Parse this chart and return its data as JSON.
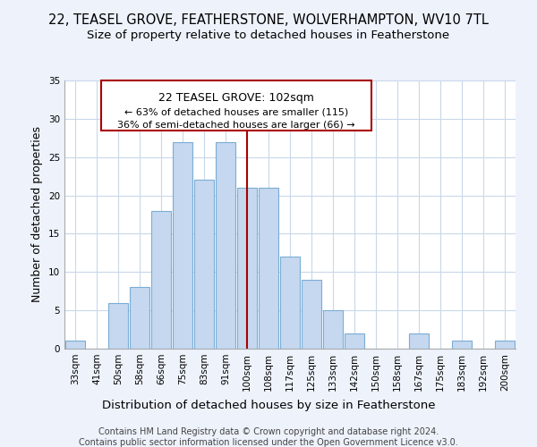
{
  "title": "22, TEASEL GROVE, FEATHERSTONE, WOLVERHAMPTON, WV10 7TL",
  "subtitle": "Size of property relative to detached houses in Featherstone",
  "xlabel": "Distribution of detached houses by size in Featherstone",
  "ylabel": "Number of detached properties",
  "bar_color": "#c5d8f0",
  "bar_edge_color": "#7aadd4",
  "categories": [
    "33sqm",
    "41sqm",
    "50sqm",
    "58sqm",
    "66sqm",
    "75sqm",
    "83sqm",
    "91sqm",
    "100sqm",
    "108sqm",
    "117sqm",
    "125sqm",
    "133sqm",
    "142sqm",
    "150sqm",
    "158sqm",
    "167sqm",
    "175sqm",
    "183sqm",
    "192sqm",
    "200sqm"
  ],
  "values": [
    1,
    0,
    6,
    8,
    18,
    27,
    22,
    27,
    21,
    21,
    12,
    9,
    5,
    2,
    0,
    0,
    2,
    0,
    1,
    0,
    1
  ],
  "ylim": [
    0,
    35
  ],
  "yticks": [
    0,
    5,
    10,
    15,
    20,
    25,
    30,
    35
  ],
  "marker_label": "22 TEASEL GROVE: 102sqm",
  "marker_line_color": "#aa0000",
  "annotation_line1": "← 63% of detached houses are smaller (115)",
  "annotation_line2": "36% of semi-detached houses are larger (66) →",
  "footer1": "Contains HM Land Registry data © Crown copyright and database right 2024.",
  "footer2": "Contains public sector information licensed under the Open Government Licence v3.0.",
  "background_color": "#edf2fb",
  "plot_bg_color": "#ffffff",
  "grid_color": "#c8d8ea",
  "title_fontsize": 10.5,
  "subtitle_fontsize": 9.5,
  "axis_label_fontsize": 9,
  "tick_fontsize": 7.5,
  "footer_fontsize": 7
}
